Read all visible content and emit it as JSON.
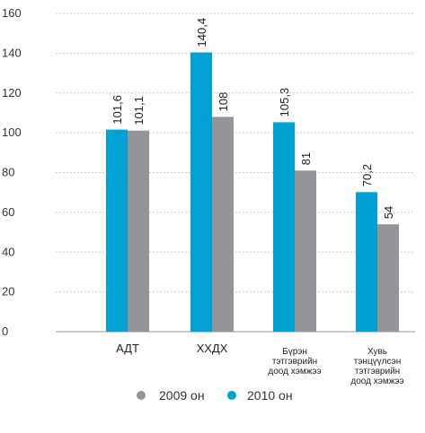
{
  "chart_data": {
    "type": "bar",
    "categories": [
      [
        "АДТ"
      ],
      [
        "ХХДХ"
      ],
      [
        "Бүрэн",
        "тэтгэврийн",
        "доод хэмжээ"
      ],
      [
        "Хувь",
        "тэнцүүлсэн",
        "тэтгэврийн",
        "доод хэмжээ"
      ]
    ],
    "series": [
      {
        "name": "2010 он",
        "color": "#00a2d3",
        "values": [
          101.6,
          140.4,
          105.3,
          70.2
        ],
        "labels": [
          "101,6",
          "140,4",
          "105,3",
          "70,2"
        ]
      },
      {
        "name": "2009 он",
        "color": "#939598",
        "values": [
          101.1,
          108,
          81,
          54
        ],
        "labels": [
          "101,1",
          "108",
          "81",
          "54"
        ]
      }
    ],
    "ylim": [
      0,
      160
    ],
    "yticks": [
      0,
      20,
      40,
      60,
      80,
      100,
      120,
      140,
      160
    ],
    "grid": true,
    "legend": [
      {
        "name": "2009 он",
        "color": "#939598"
      },
      {
        "name": "2010 он",
        "color": "#00a2d3"
      }
    ],
    "legend_position": "bottom",
    "title": "",
    "xlabel": "",
    "ylabel": ""
  }
}
